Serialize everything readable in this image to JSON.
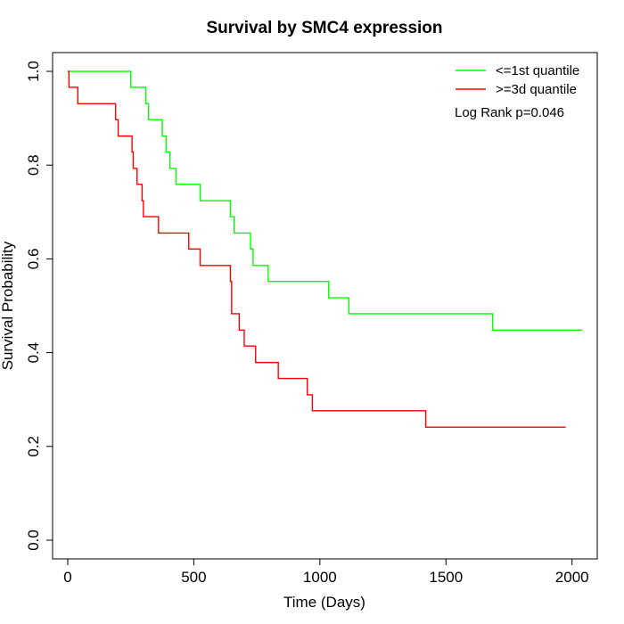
{
  "chart_data": {
    "type": "line",
    "title": "Survival by SMC4 expression",
    "xlabel": "Time (Days)",
    "ylabel": "Survival Probability",
    "xlim": [
      -60,
      2100
    ],
    "ylim": [
      -0.04,
      1.04
    ],
    "x_ticks": [
      0,
      500,
      1000,
      1500,
      2000
    ],
    "y_ticks": [
      0.0,
      0.2,
      0.4,
      0.6,
      0.8,
      1.0
    ],
    "x_tick_labels": [
      "0",
      "500",
      "1000",
      "1500",
      "2000"
    ],
    "y_tick_labels": [
      "0.0",
      "0.2",
      "0.4",
      "0.6",
      "0.8",
      "1.0"
    ],
    "grid": false,
    "legend_position": "top-right",
    "annotation": "Log Rank p=0.046",
    "series": [
      {
        "name": "<=1st quantile",
        "color": "#00ff00",
        "step": true,
        "x": [
          0,
          250,
          310,
          320,
          345,
          375,
          390,
          405,
          430,
          525,
          645,
          660,
          725,
          735,
          795,
          1035,
          1115,
          1685,
          2040
        ],
        "y": [
          1.0,
          0.966,
          0.931,
          0.897,
          0.897,
          0.862,
          0.828,
          0.793,
          0.759,
          0.724,
          0.69,
          0.655,
          0.621,
          0.586,
          0.552,
          0.517,
          0.483,
          0.448,
          0.448
        ]
      },
      {
        "name": ">=3d quantile",
        "color": "#ff0000",
        "step": true,
        "x": [
          0,
          5,
          40,
          190,
          200,
          255,
          260,
          275,
          295,
          300,
          360,
          480,
          525,
          645,
          650,
          680,
          700,
          745,
          835,
          950,
          970,
          1420,
          1975
        ],
        "y": [
          1.0,
          0.966,
          0.931,
          0.897,
          0.862,
          0.828,
          0.793,
          0.759,
          0.724,
          0.69,
          0.655,
          0.621,
          0.586,
          0.552,
          0.483,
          0.448,
          0.414,
          0.379,
          0.345,
          0.31,
          0.276,
          0.241,
          0.241
        ]
      }
    ]
  }
}
